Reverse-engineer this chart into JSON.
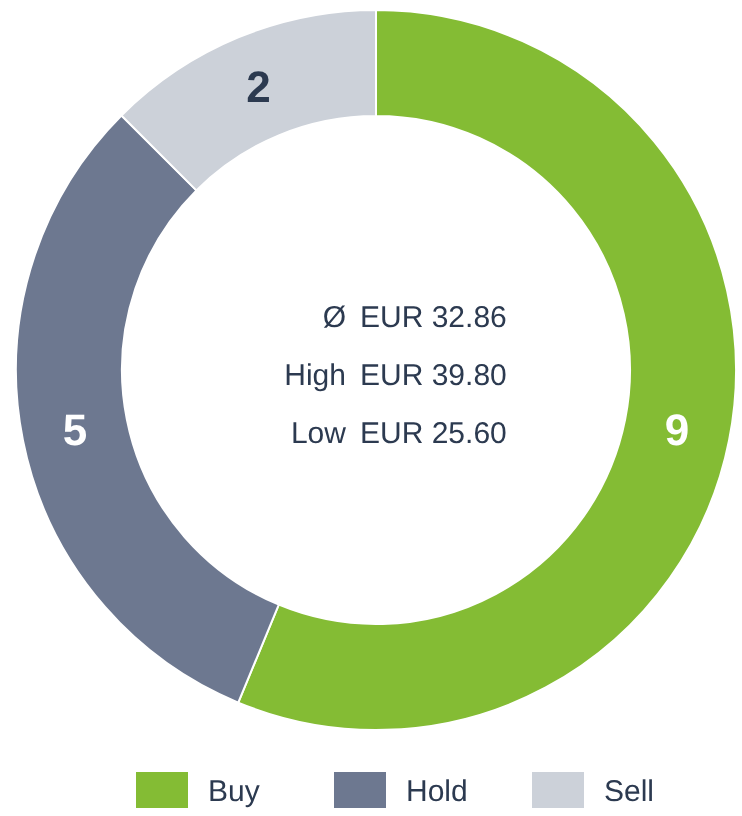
{
  "chart_data": {
    "type": "donut",
    "categories": [
      "Buy",
      "Hold",
      "Sell"
    ],
    "values": [
      9,
      5,
      2
    ],
    "colors": [
      "#84bc34",
      "#6d7890",
      "#ccd1d9"
    ],
    "data_labels": true,
    "legend": "bottom",
    "annotations": [
      "Ø",
      "EUR 32.86",
      "High",
      "EUR 39.80",
      "Low",
      "EUR 25.60"
    ]
  }
}
